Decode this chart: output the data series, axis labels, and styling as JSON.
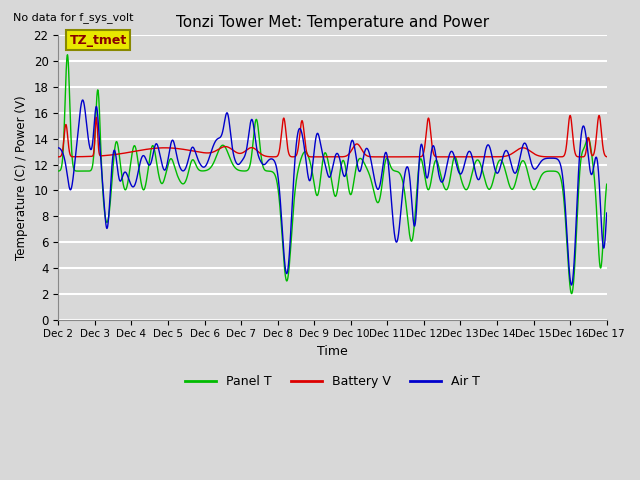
{
  "title": "Tonzi Tower Met: Temperature and Power",
  "top_left_note": "No data for f_sys_volt",
  "legend_label": "TZ_tmet",
  "xlabel": "Time",
  "ylabel": "Temperature (C) / Power (V)",
  "xlim": [
    0,
    360
  ],
  "ylim": [
    0,
    22
  ],
  "yticks": [
    0,
    2,
    4,
    6,
    8,
    10,
    12,
    14,
    16,
    18,
    20,
    22
  ],
  "xtick_labels": [
    "Dec 2",
    "Dec 3",
    "Dec 4",
    "Dec 5",
    "Dec 6",
    "Dec 7",
    "Dec 8",
    "Dec 9",
    "Dec 10",
    "Dec 11",
    "Dec 12",
    "Dec 13",
    "Dec 14",
    "Dec 15",
    "Dec 16",
    "Dec 17"
  ],
  "xtick_positions": [
    0,
    24,
    48,
    72,
    96,
    120,
    144,
    168,
    192,
    216,
    240,
    264,
    288,
    312,
    336,
    360
  ],
  "bg_color": "#d8d8d8",
  "plot_bg_color": "#d8d8d8",
  "grid_color": "#ffffff",
  "panel_t_color": "#00bb00",
  "battery_v_color": "#dd0000",
  "air_t_color": "#0000cc",
  "line_width": 1.0,
  "legend_box_facecolor": "#e8e800",
  "legend_box_edgecolor": "#888800",
  "legend_label_color": "#880000"
}
